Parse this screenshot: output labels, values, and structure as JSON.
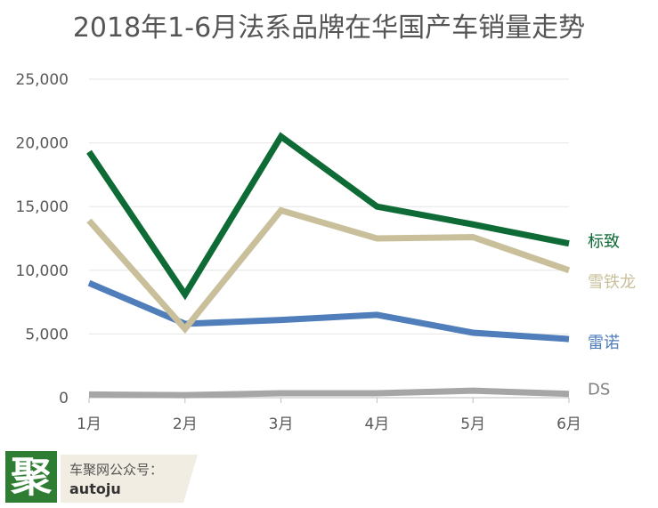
{
  "chart_data": {
    "type": "line",
    "title": "2018年1-6月法系品牌在华国产车销量走势",
    "categories": [
      "1月",
      "2月",
      "3月",
      "4月",
      "5月",
      "6月"
    ],
    "ylim": [
      0,
      25000
    ],
    "yticks": [
      "0",
      "5,000",
      "10,000",
      "15,000",
      "20,000",
      "25,000"
    ],
    "ytick_values": [
      0,
      5000,
      10000,
      15000,
      20000,
      25000
    ],
    "grid": true,
    "legend": "direct labels at right end of lines",
    "series": [
      {
        "name": "标致",
        "color": "#0e6b35",
        "values": [
          19300,
          8100,
          20500,
          15000,
          13600,
          12100
        ]
      },
      {
        "name": "雪铁龙",
        "color": "#c9c09b",
        "values": [
          13900,
          5400,
          14700,
          12500,
          12600,
          10000
        ]
      },
      {
        "name": "雷诺",
        "color": "#4f7ebb",
        "values": [
          9000,
          5800,
          6100,
          6500,
          5100,
          4600
        ]
      },
      {
        "name": "DS",
        "color": "#a6a6a6",
        "values": [
          250,
          200,
          350,
          350,
          550,
          300
        ]
      }
    ]
  },
  "brand": {
    "logo_char": "聚",
    "line1": "车聚网公众号：",
    "line2": "autoju",
    "logo_color": "#2e7d32"
  }
}
